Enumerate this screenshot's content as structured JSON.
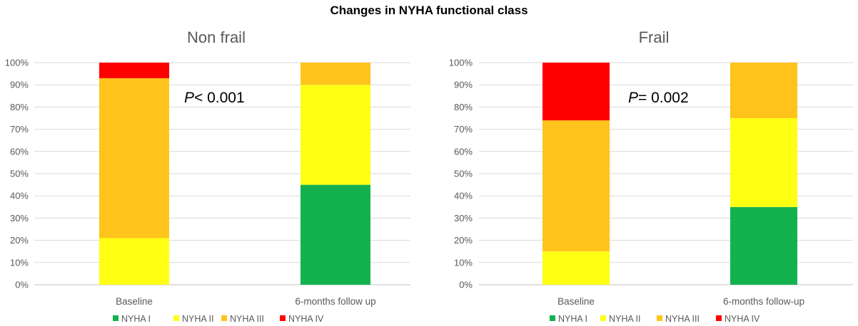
{
  "title": "Changes in NYHA functional class",
  "colors": {
    "NYHA I": "#13b24f",
    "NYHA II": "#ffff14",
    "NYHA III": "#ffc31b",
    "NYHA IV": "#ff0000",
    "gridline": "#d9d9d9",
    "axis": "#bfbfbf"
  },
  "chart_data": [
    {
      "type": "bar",
      "stacked": true,
      "title": "Non frail",
      "annotation": {
        "p_letter": "P",
        "p_text": "< 0.001"
      },
      "categories": [
        "Baseline",
        "6-months follow up"
      ],
      "series": [
        {
          "name": "NYHA I",
          "values": [
            0,
            45
          ]
        },
        {
          "name": "NYHA II",
          "values": [
            21,
            45
          ]
        },
        {
          "name": "NYHA III",
          "values": [
            72,
            10
          ]
        },
        {
          "name": "NYHA IV",
          "values": [
            7,
            0
          ]
        }
      ],
      "yticks": [
        "0%",
        "10%",
        "20%",
        "30%",
        "40%",
        "50%",
        "60%",
        "70%",
        "80%",
        "90%",
        "100%"
      ],
      "ylim": [
        0,
        100
      ],
      "grid": true,
      "legend": "bottom"
    },
    {
      "type": "bar",
      "stacked": true,
      "title": "Frail",
      "annotation": {
        "p_letter": "P",
        "p_text": "= 0.002"
      },
      "categories": [
        "Baseline",
        "6-months follow-up"
      ],
      "series": [
        {
          "name": "NYHA I",
          "values": [
            0,
            35
          ]
        },
        {
          "name": "NYHA II",
          "values": [
            15,
            40
          ]
        },
        {
          "name": "NYHA III",
          "values": [
            59,
            25
          ]
        },
        {
          "name": "NYHA IV",
          "values": [
            26,
            0
          ]
        }
      ],
      "yticks": [
        "0%",
        "10%",
        "20%",
        "30%",
        "40%",
        "50%",
        "60%",
        "70%",
        "80%",
        "90%",
        "100%"
      ],
      "ylim": [
        0,
        100
      ],
      "grid": true,
      "legend": "bottom"
    }
  ]
}
